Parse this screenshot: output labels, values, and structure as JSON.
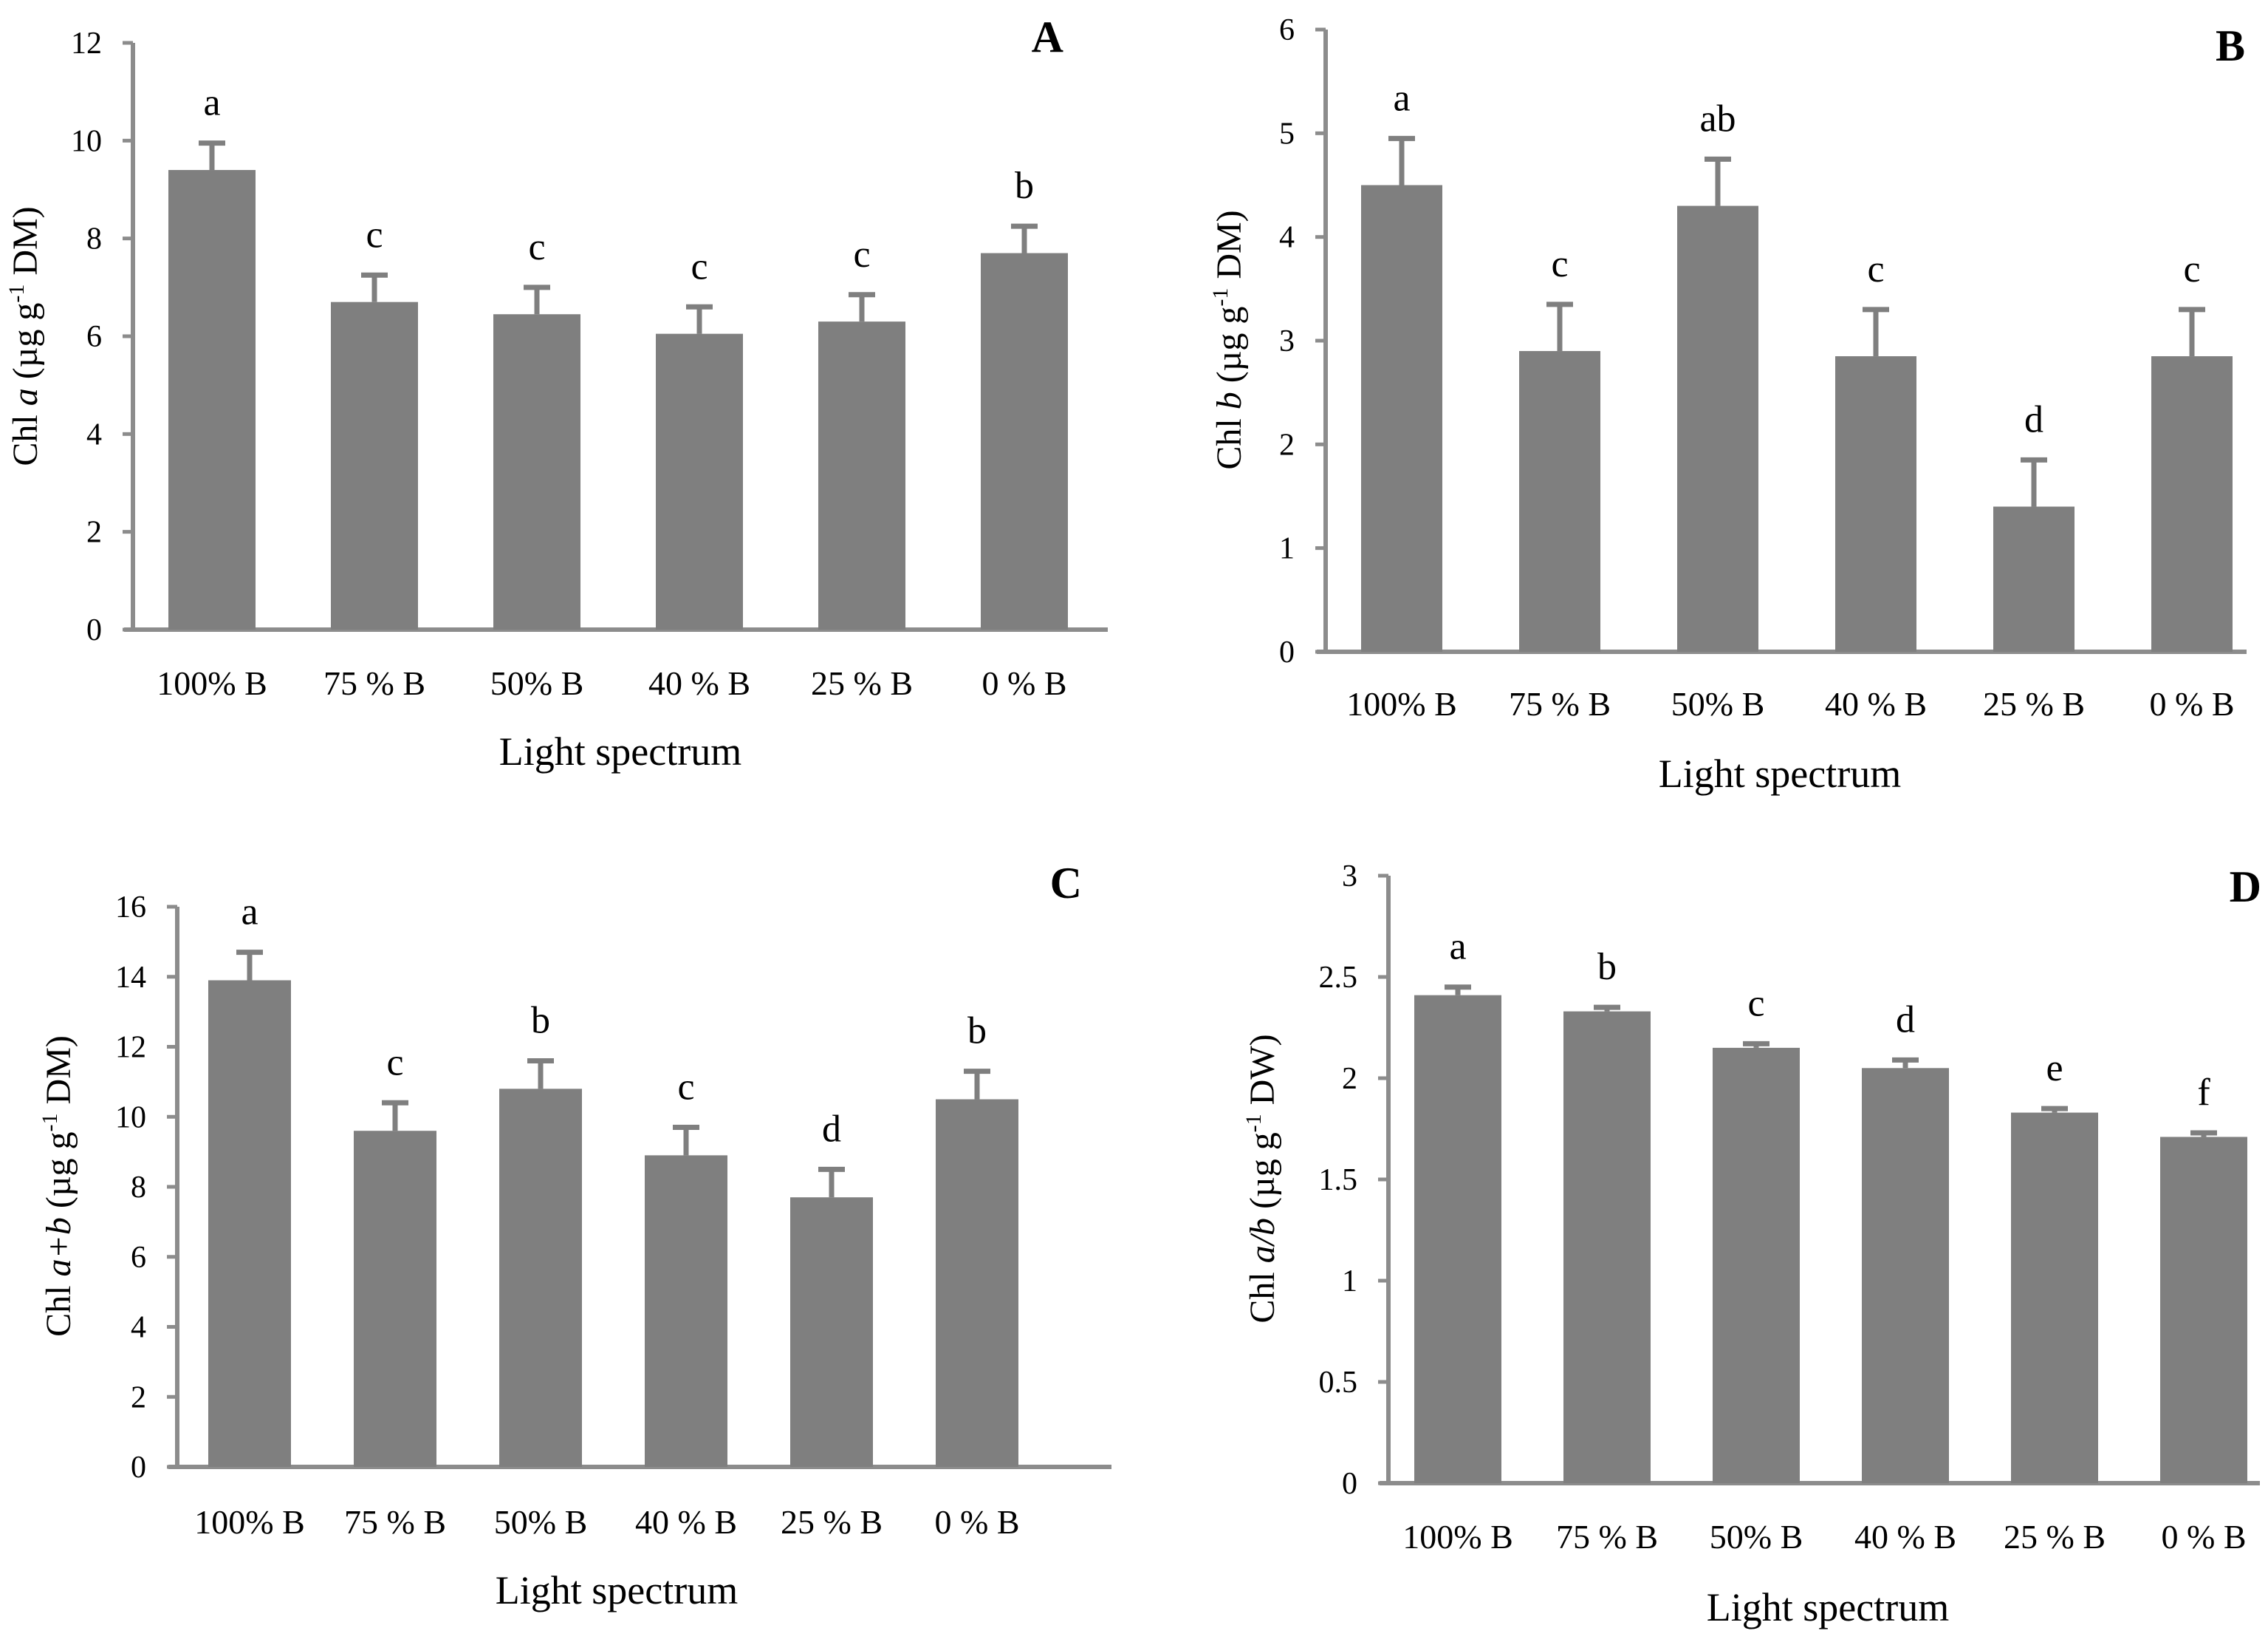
{
  "colors": {
    "bar": "#7f7f7f",
    "axis": "#8c8c8c",
    "text": "#000000"
  },
  "chart_data": [
    {
      "type": "bar",
      "panel": "A",
      "title": "",
      "xlabel": "Light spectrum",
      "ylabel": {
        "prefix": "Chl ",
        "italic": "a",
        "unit_pre": " (µg g",
        "sup": "-1",
        "unit_post": " DM)"
      },
      "categories": [
        "100% B",
        "75 % B",
        "50% B",
        "40 % B",
        "25 % B",
        "0 % B"
      ],
      "values": [
        9.4,
        6.7,
        6.45,
        6.05,
        6.3,
        7.7
      ],
      "errors": [
        0.55,
        0.55,
        0.55,
        0.55,
        0.55,
        0.55
      ],
      "letters": [
        "a",
        "c",
        "c",
        "c",
        "c",
        "b"
      ],
      "ylim": [
        0,
        12
      ],
      "yticks": [
        0,
        2,
        4,
        6,
        8,
        10,
        12
      ],
      "ytick_labels": [
        "0",
        "2",
        "4",
        "6",
        "8",
        "10",
        "12"
      ]
    },
    {
      "type": "bar",
      "panel": "B",
      "title": "",
      "xlabel": "Light spectrum",
      "ylabel": {
        "prefix": "Chl ",
        "italic": "b",
        "unit_pre": "  (µg g",
        "sup": "-1",
        "unit_post": " DM)"
      },
      "categories": [
        "100% B",
        "75 % B",
        "50% B",
        "40 % B",
        "25 % B",
        "0 % B"
      ],
      "values": [
        4.5,
        2.9,
        4.3,
        2.85,
        1.4,
        2.85
      ],
      "errors": [
        0.45,
        0.45,
        0.45,
        0.45,
        0.45,
        0.45
      ],
      "letters": [
        "a",
        "c",
        "ab",
        "c",
        "d",
        "c"
      ],
      "ylim": [
        0,
        6
      ],
      "yticks": [
        0,
        1,
        2,
        3,
        4,
        5,
        6
      ],
      "ytick_labels": [
        "0",
        "1",
        "2",
        "3",
        "4",
        "5",
        "6"
      ]
    },
    {
      "type": "bar",
      "panel": "C",
      "title": "",
      "xlabel": "Light spectrum",
      "ylabel": {
        "prefix": "Chl ",
        "italic": "a+b",
        "unit_pre": "  (µg g",
        "sup": "-1",
        "unit_post": " DM)"
      },
      "categories": [
        "100% B",
        "75 % B",
        "50% B",
        "40 % B",
        "25 % B",
        "0 % B"
      ],
      "values": [
        13.9,
        9.6,
        10.8,
        8.9,
        7.7,
        10.5
      ],
      "errors": [
        0.8,
        0.8,
        0.8,
        0.8,
        0.8,
        0.8
      ],
      "letters": [
        "a",
        "c",
        "b",
        "c",
        "d",
        "b"
      ],
      "ylim": [
        0,
        16
      ],
      "yticks": [
        0,
        2,
        4,
        6,
        8,
        10,
        12,
        14,
        16
      ],
      "ytick_labels": [
        "0",
        "2",
        "4",
        "6",
        "8",
        "10",
        "12",
        "14",
        "16"
      ]
    },
    {
      "type": "bar",
      "panel": "D",
      "title": "",
      "xlabel": "Light spectrum",
      "ylabel": {
        "prefix": "Chl ",
        "italic": "a/b",
        "unit_pre": "  (µg g",
        "sup": "-1",
        "unit_post": " DW)"
      },
      "categories": [
        "100% B",
        "75 % B",
        "50% B",
        "40 % B",
        "25 % B",
        "0 % B"
      ],
      "values": [
        2.41,
        2.33,
        2.15,
        2.05,
        1.83,
        1.71
      ],
      "errors": [
        0.04,
        0.02,
        0.02,
        0.04,
        0.02,
        0.02
      ],
      "letters": [
        "a",
        "b",
        "c",
        "d",
        "e",
        "f"
      ],
      "ylim": [
        0,
        3
      ],
      "yticks": [
        0,
        0.5,
        1,
        1.5,
        2,
        2.5,
        3
      ],
      "ytick_labels": [
        "0",
        "0.5",
        "1",
        "1.5",
        "2",
        "2.5",
        "3"
      ]
    }
  ]
}
